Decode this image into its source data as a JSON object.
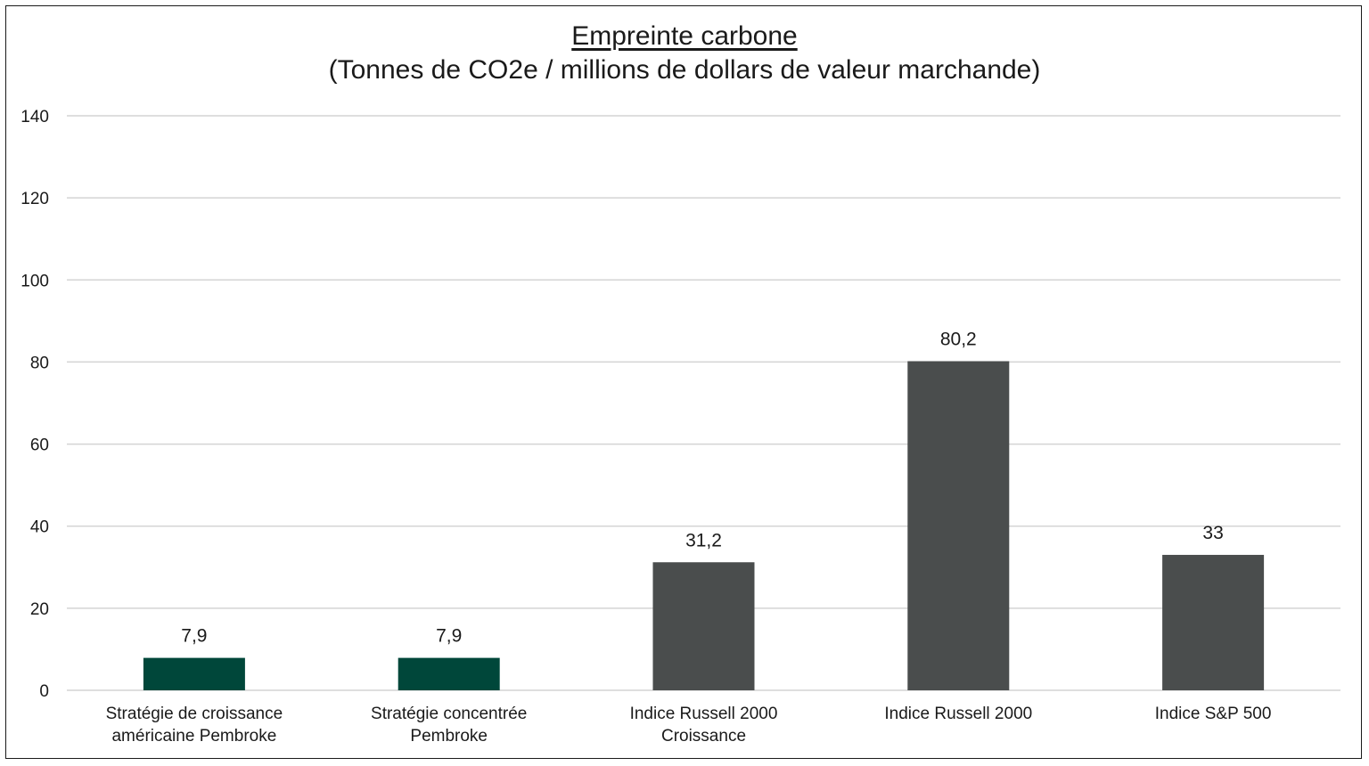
{
  "chart_data": {
    "type": "bar",
    "title": "Empreinte carbone",
    "subtitle": "(Tonnes de CO2e / millions de dollars de valeur marchande)",
    "xlabel": "",
    "ylabel": "",
    "ylim": [
      0,
      140
    ],
    "yticks": [
      0,
      20,
      40,
      60,
      80,
      100,
      120,
      140
    ],
    "grid": true,
    "categories": [
      [
        "Stratégie de croissance",
        "américaine Pembroke"
      ],
      [
        "Stratégie concentrée",
        "Pembroke"
      ],
      [
        "Indice Russell 2000",
        "Croissance"
      ],
      [
        "Indice Russell 2000"
      ],
      [
        "Indice S&P 500"
      ]
    ],
    "values": [
      7.9,
      7.9,
      31.2,
      80.2,
      33
    ],
    "value_labels": [
      "7,9",
      "7,9",
      "31,2",
      "80,2",
      "33"
    ],
    "bar_colors": [
      "#00473a",
      "#00473a",
      "#4a4d4d",
      "#4a4d4d",
      "#4a4d4d"
    ],
    "grid_color": "#d4d4d4"
  }
}
